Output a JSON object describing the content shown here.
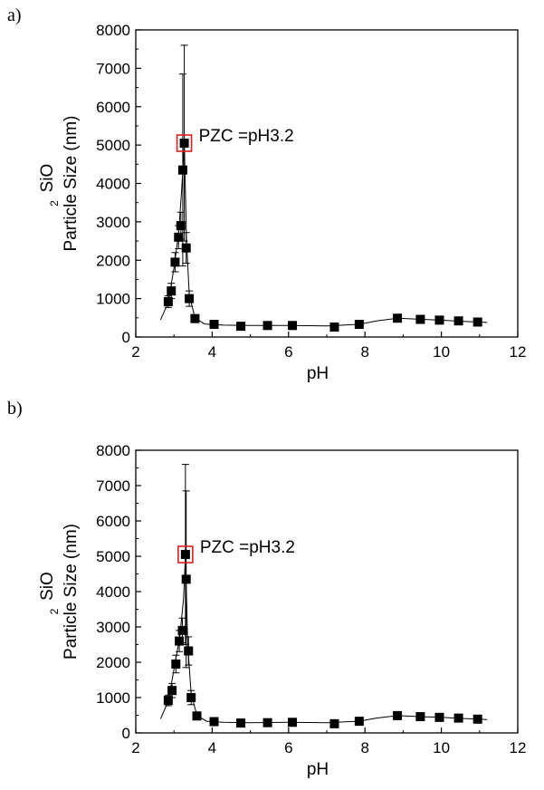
{
  "panels": [
    {
      "label": "a)"
    },
    {
      "label": "b)"
    }
  ],
  "colors": {
    "marker": "#000000",
    "line": "#000000",
    "highlight": "#e02020"
  },
  "chart_data": [
    {
      "type": "scatter",
      "xlabel": "pH",
      "ylabel_top": "SiO",
      "ylabel_sub": "2",
      "ylabel": "Particle Size (nm)",
      "xlim": [
        2,
        12
      ],
      "ylim": [
        0,
        8000
      ],
      "xticks": [
        2,
        4,
        6,
        8,
        10,
        12
      ],
      "yticks": [
        0,
        1000,
        2000,
        3000,
        4000,
        5000,
        6000,
        7000,
        8000
      ],
      "annotation": "PZC =pH3.2",
      "highlight_point": [
        3.27,
        5050
      ],
      "points": [
        {
          "x": 2.85,
          "y": 920,
          "err": 150
        },
        {
          "x": 2.93,
          "y": 1200,
          "err": 200
        },
        {
          "x": 3.03,
          "y": 1950,
          "err": 250
        },
        {
          "x": 3.12,
          "y": 2600,
          "err": 300
        },
        {
          "x": 3.18,
          "y": 2900,
          "err": 350
        },
        {
          "x": 3.23,
          "y": 4350,
          "err": 2500
        },
        {
          "x": 3.27,
          "y": 5050,
          "err": 2550
        },
        {
          "x": 3.32,
          "y": 2320,
          "err": 400
        },
        {
          "x": 3.4,
          "y": 1000,
          "err": 200
        },
        {
          "x": 3.55,
          "y": 480,
          "err": 80
        },
        {
          "x": 4.05,
          "y": 330,
          "err": 40
        },
        {
          "x": 4.75,
          "y": 280,
          "err": 30
        },
        {
          "x": 5.45,
          "y": 300,
          "err": 30
        },
        {
          "x": 6.1,
          "y": 300,
          "err": 30
        },
        {
          "x": 7.2,
          "y": 260,
          "err": 30
        },
        {
          "x": 7.85,
          "y": 330,
          "err": 40
        },
        {
          "x": 8.85,
          "y": 490,
          "err": 50
        },
        {
          "x": 9.45,
          "y": 460,
          "err": 50
        },
        {
          "x": 9.95,
          "y": 440,
          "err": 50
        },
        {
          "x": 10.45,
          "y": 420,
          "err": 50
        },
        {
          "x": 10.95,
          "y": 390,
          "err": 40
        }
      ],
      "fit_curve": [
        [
          2.65,
          450
        ],
        [
          2.85,
          900
        ],
        [
          3.0,
          1800
        ],
        [
          3.12,
          2700
        ],
        [
          3.2,
          3800
        ],
        [
          3.27,
          5050
        ],
        [
          3.33,
          2500
        ],
        [
          3.4,
          1100
        ],
        [
          3.55,
          500
        ],
        [
          3.8,
          340
        ],
        [
          4.3,
          310
        ],
        [
          5.0,
          300
        ],
        [
          6.0,
          300
        ],
        [
          7.0,
          290
        ],
        [
          7.85,
          330
        ],
        [
          8.3,
          420
        ],
        [
          8.85,
          490
        ],
        [
          9.5,
          460
        ],
        [
          10.0,
          440
        ],
        [
          10.5,
          410
        ],
        [
          11.0,
          390
        ],
        [
          11.2,
          380
        ]
      ]
    },
    {
      "type": "scatter",
      "xlabel": "pH",
      "ylabel_top": "SiO",
      "ylabel_sub": "2",
      "ylabel": "Particle Size (nm)",
      "xlim": [
        2,
        12
      ],
      "ylim": [
        0,
        8000
      ],
      "xticks": [
        2,
        4,
        6,
        8,
        10,
        12
      ],
      "yticks": [
        0,
        1000,
        2000,
        3000,
        4000,
        5000,
        6000,
        7000,
        8000
      ],
      "annotation": "PZC =pH3.2",
      "highlight_point": [
        3.3,
        5050
      ],
      "points": [
        {
          "x": 2.85,
          "y": 920,
          "err": 150
        },
        {
          "x": 2.95,
          "y": 1200,
          "err": 200
        },
        {
          "x": 3.05,
          "y": 1950,
          "err": 250
        },
        {
          "x": 3.14,
          "y": 2600,
          "err": 300
        },
        {
          "x": 3.22,
          "y": 2900,
          "err": 350
        },
        {
          "x": 3.32,
          "y": 4350,
          "err": 2500
        },
        {
          "x": 3.3,
          "y": 5050,
          "err": 2550
        },
        {
          "x": 3.38,
          "y": 2320,
          "err": 400
        },
        {
          "x": 3.45,
          "y": 1000,
          "err": 200
        },
        {
          "x": 3.6,
          "y": 480,
          "err": 80
        },
        {
          "x": 4.05,
          "y": 320,
          "err": 40
        },
        {
          "x": 4.75,
          "y": 280,
          "err": 30
        },
        {
          "x": 5.45,
          "y": 290,
          "err": 30
        },
        {
          "x": 6.1,
          "y": 300,
          "err": 30
        },
        {
          "x": 7.2,
          "y": 260,
          "err": 30
        },
        {
          "x": 7.85,
          "y": 330,
          "err": 40
        },
        {
          "x": 8.85,
          "y": 490,
          "err": 50
        },
        {
          "x": 9.45,
          "y": 460,
          "err": 50
        },
        {
          "x": 9.95,
          "y": 440,
          "err": 50
        },
        {
          "x": 10.45,
          "y": 420,
          "err": 50
        },
        {
          "x": 10.95,
          "y": 390,
          "err": 40
        }
      ],
      "fit_curve": [
        [
          2.65,
          400
        ],
        [
          2.85,
          900
        ],
        [
          3.0,
          1800
        ],
        [
          3.15,
          2700
        ],
        [
          3.25,
          3800
        ],
        [
          3.3,
          5050
        ],
        [
          3.36,
          2500
        ],
        [
          3.45,
          1100
        ],
        [
          3.6,
          500
        ],
        [
          3.85,
          330
        ],
        [
          4.3,
          300
        ],
        [
          5.0,
          290
        ],
        [
          6.0,
          300
        ],
        [
          7.0,
          290
        ],
        [
          7.85,
          330
        ],
        [
          8.3,
          420
        ],
        [
          8.85,
          490
        ],
        [
          9.5,
          460
        ],
        [
          10.0,
          440
        ],
        [
          10.5,
          410
        ],
        [
          11.0,
          390
        ],
        [
          11.2,
          380
        ]
      ]
    }
  ]
}
